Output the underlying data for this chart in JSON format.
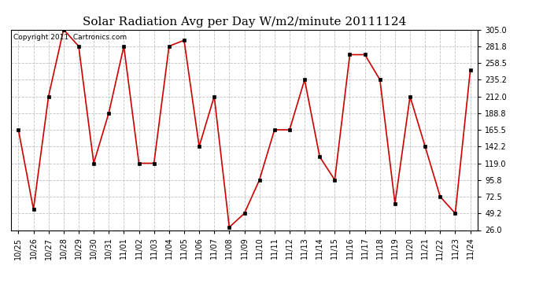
{
  "title": "Solar Radiation Avg per Day W/m2/minute 20111124",
  "copyright": "Copyright 2011  Cartronics.com",
  "labels": [
    "10/25",
    "10/26",
    "10/27",
    "10/28",
    "10/29",
    "10/30",
    "10/31",
    "11/01",
    "11/02",
    "11/03",
    "11/04",
    "11/05",
    "11/06",
    "11/07",
    "11/08",
    "11/09",
    "11/10",
    "11/11",
    "11/12",
    "11/13",
    "11/14",
    "11/15",
    "11/16",
    "11/17",
    "11/18",
    "11/19",
    "11/20",
    "11/21",
    "11/22",
    "11/23",
    "11/24"
  ],
  "values": [
    165.5,
    55.0,
    212.0,
    305.0,
    281.8,
    119.0,
    188.8,
    281.8,
    119.0,
    119.0,
    281.8,
    290.0,
    142.2,
    212.0,
    30.0,
    49.2,
    95.8,
    165.5,
    165.5,
    235.2,
    128.0,
    95.8,
    270.0,
    270.0,
    235.2,
    63.0,
    212.0,
    142.2,
    72.5,
    49.2,
    248.5
  ],
  "ylim": [
    26.0,
    305.0
  ],
  "yticks": [
    26.0,
    49.2,
    72.5,
    95.8,
    119.0,
    142.2,
    165.5,
    188.8,
    212.0,
    235.2,
    258.5,
    281.8,
    305.0
  ],
  "line_color": "#cc0000",
  "marker_color": "#000000",
  "bg_color": "#ffffff",
  "grid_color": "#bbbbbb",
  "title_fontsize": 11,
  "copyright_fontsize": 6.5,
  "tick_fontsize": 7,
  "figwidth": 6.9,
  "figheight": 3.75,
  "dpi": 100
}
